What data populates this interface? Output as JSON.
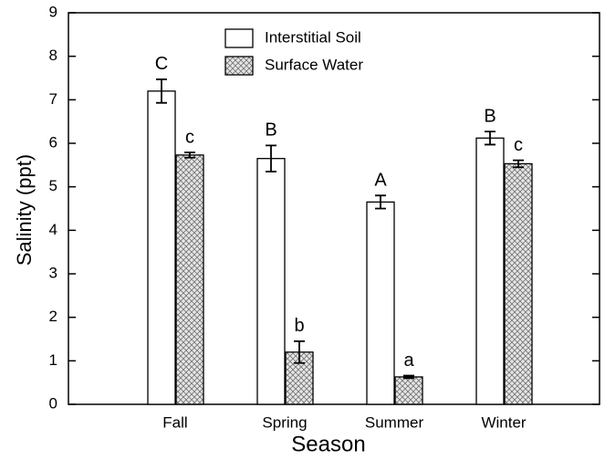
{
  "chart_data": {
    "type": "bar",
    "x_label": "Season",
    "y_label": "Salinity (ppt)",
    "categories": [
      "Fall",
      "Spring",
      "Summer",
      "Winter"
    ],
    "series": [
      {
        "name": "Interstitial Soil",
        "color": "#ffffff",
        "values": [
          7.2,
          5.65,
          4.65,
          6.12
        ],
        "errors": [
          0.27,
          0.3,
          0.15,
          0.15
        ],
        "letters": [
          "C",
          "B",
          "A",
          "B"
        ]
      },
      {
        "name": "Surface Water",
        "color": "crosshatch",
        "values": [
          5.73,
          1.2,
          0.63,
          5.53
        ],
        "errors": [
          0.06,
          0.25,
          0.03,
          0.08
        ],
        "letters": [
          "c",
          "b",
          "a",
          "c"
        ]
      }
    ],
    "ylim": [
      0,
      9
    ],
    "yticks": [
      0,
      1,
      2,
      3,
      4,
      5,
      6,
      7,
      8,
      9
    ],
    "legend": "top"
  }
}
